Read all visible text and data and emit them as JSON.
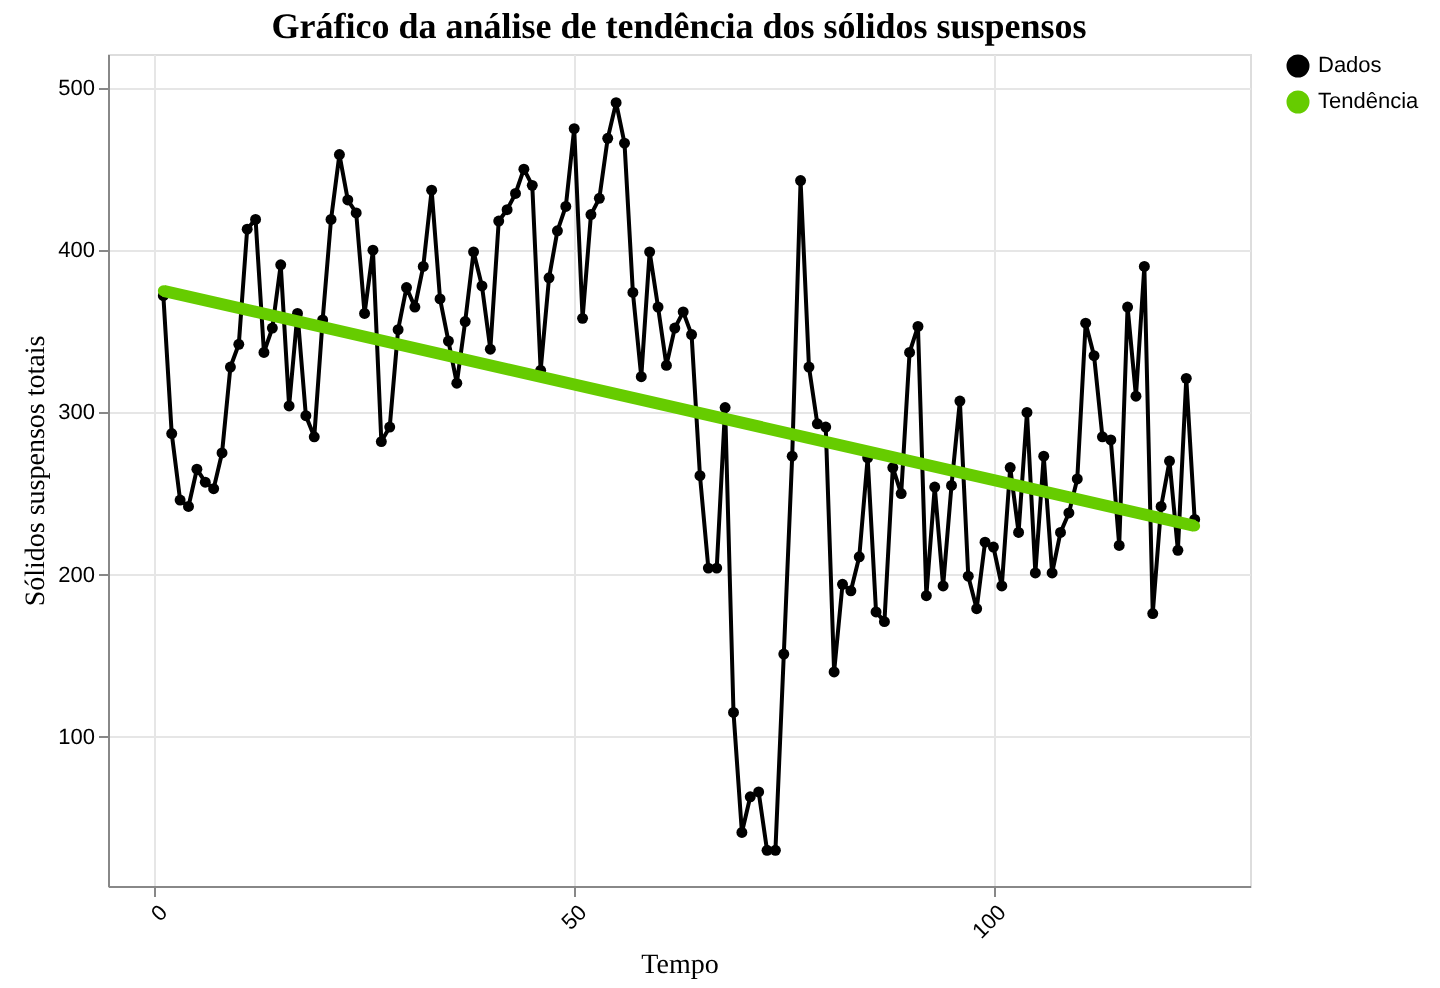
{
  "chart_data": {
    "type": "line",
    "title": "Gráfico da análise de tendência dos sólidos suspensos",
    "xlabel": "Tempo",
    "ylabel": "Sólidos suspensos totais",
    "xlim": [
      -5.6,
      130.6
    ],
    "ylim": [
      8,
      521
    ],
    "xticks": [
      0,
      50,
      100
    ],
    "yticks": [
      100,
      200,
      300,
      400,
      500
    ],
    "grid": true,
    "legend": "right",
    "marker": "circle",
    "line_style": "solid",
    "x": [
      1,
      2,
      3,
      4,
      5,
      6,
      7,
      8,
      9,
      10,
      11,
      12,
      13,
      14,
      15,
      16,
      17,
      18,
      19,
      20,
      21,
      22,
      23,
      24,
      25,
      26,
      27,
      28,
      29,
      30,
      31,
      32,
      33,
      34,
      35,
      36,
      37,
      38,
      39,
      40,
      41,
      42,
      43,
      44,
      45,
      46,
      47,
      48,
      49,
      50,
      51,
      52,
      53,
      54,
      55,
      56,
      57,
      58,
      59,
      60,
      61,
      62,
      63,
      64,
      65,
      66,
      67,
      68,
      69,
      70,
      71,
      72,
      73,
      74,
      75,
      76,
      77,
      78,
      79,
      80,
      81,
      82,
      83,
      84,
      85,
      86,
      87,
      88,
      89,
      90,
      91,
      92,
      93,
      94,
      95,
      96,
      97,
      98,
      99,
      100,
      101,
      102,
      103,
      104,
      105,
      106,
      107,
      108,
      109,
      110,
      111,
      112,
      113,
      114,
      115,
      116,
      117,
      118,
      119,
      120,
      121,
      122,
      123,
      124
    ],
    "series": [
      {
        "name": "Dados",
        "color": "#000000",
        "values": [
          372,
          287,
          246,
          242,
          265,
          257,
          253,
          275,
          328,
          342,
          413,
          419,
          337,
          352,
          391,
          304,
          361,
          298,
          285,
          357,
          419,
          459,
          431,
          423,
          361,
          400,
          282,
          291,
          351,
          377,
          365,
          390,
          437,
          370,
          344,
          318,
          356,
          399,
          378,
          339,
          418,
          425,
          435,
          450,
          440,
          326,
          383,
          412,
          427,
          475,
          358,
          422,
          432,
          469,
          491,
          466,
          374,
          322,
          399,
          365,
          329,
          352,
          362,
          348,
          261,
          204,
          204,
          303,
          115,
          41,
          63,
          66,
          30,
          30,
          151,
          273,
          443,
          328,
          293,
          291,
          140,
          194,
          190,
          211,
          272,
          177,
          171,
          266,
          250,
          337,
          353,
          187,
          254,
          193,
          255,
          307,
          199,
          179,
          220,
          217,
          193,
          266,
          226,
          300,
          201,
          273,
          201,
          226,
          238,
          259,
          355,
          335,
          285,
          283,
          218,
          365,
          310,
          390,
          176,
          242,
          270,
          215,
          321,
          234
        ]
      },
      {
        "name": "Tendência",
        "color": "#66cc00",
        "x": [
          1,
          124
        ],
        "values": [
          375,
          230
        ]
      }
    ]
  }
}
